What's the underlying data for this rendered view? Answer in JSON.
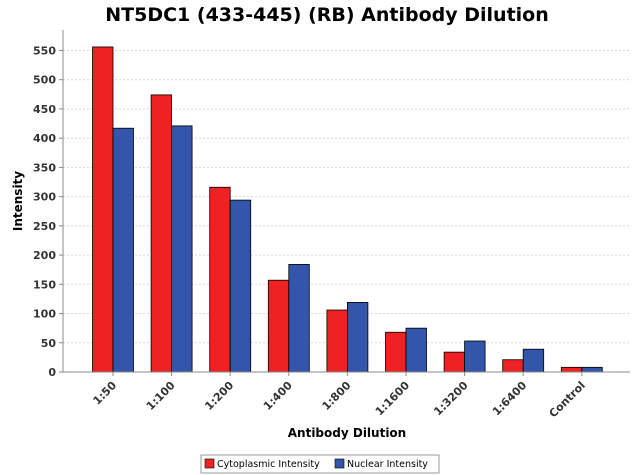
{
  "chart_data": {
    "type": "bar",
    "title": "NT5DC1 (433-445) (RB) Antibody Dilution",
    "xlabel": "Antibody Dilution",
    "ylabel": "Intensity",
    "categories": [
      "1:50",
      "1:100",
      "1:200",
      "1:400",
      "1:800",
      "1:1600",
      "1:3200",
      "1:6400",
      "Control"
    ],
    "series": [
      {
        "name": "Cytoplasmic Intensity",
        "color": "#ee2222",
        "values": [
          556,
          474,
          316,
          157,
          106,
          68,
          34,
          21,
          8
        ]
      },
      {
        "name": "Nuclear Intensity",
        "color": "#3355aa",
        "values": [
          417,
          421,
          294,
          184,
          119,
          75,
          53,
          39,
          8
        ]
      }
    ],
    "ylim": [
      0,
      585
    ],
    "yticks": [
      0,
      50,
      100,
      150,
      200,
      250,
      300,
      350,
      400,
      450,
      500,
      550
    ],
    "grid": true,
    "legend_position": "bottom-center"
  }
}
